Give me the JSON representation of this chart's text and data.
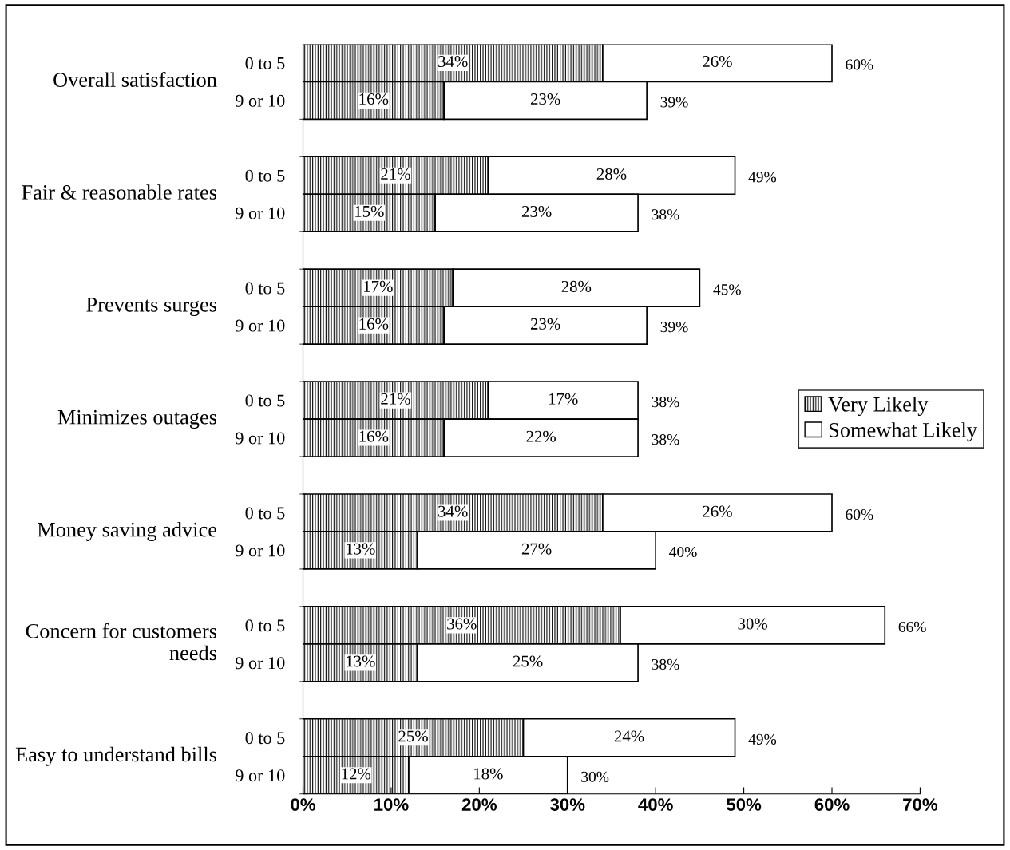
{
  "chart_data": {
    "type": "bar",
    "orientation": "horizontal",
    "stacked": true,
    "categories": [
      "0 to 5",
      "9 or 10",
      "0 to 5",
      "9 or 10",
      "0 to 5",
      "9 or 10",
      "0 to 5",
      "9 or 10",
      "0 to 5",
      "9 or 10",
      "0 to 5",
      "9 or 10",
      "0 to 5",
      "9 or 10"
    ],
    "annotations": [
      "Overall satisfaction",
      "Fair & reasonable rates",
      "Prevents surges",
      "Minimizes outages",
      "Money saving advice",
      "Concern for customers needs",
      "Easy to understand bills"
    ],
    "series": [
      {
        "name": "Very Likely",
        "color": "#000000",
        "values": [
          34,
          16,
          21,
          15,
          17,
          16,
          21,
          16,
          34,
          13,
          36,
          13,
          25,
          12
        ],
        "value_labels": [
          "34%",
          "16%",
          "21%",
          "15%",
          "17%",
          "16%",
          "21%",
          "16%",
          "34%",
          "13%",
          "36%",
          "13%",
          "25%",
          "12%"
        ]
      },
      {
        "name": "Somewhat Likely",
        "color": "#ffffff",
        "values": [
          26,
          23,
          28,
          23,
          28,
          23,
          17,
          22,
          26,
          27,
          30,
          25,
          24,
          18
        ],
        "value_labels": [
          "26%",
          "23%",
          "28%",
          "23%",
          "28%",
          "23%",
          "17%",
          "22%",
          "26%",
          "27%",
          "30%",
          "25%",
          "24%",
          "18%"
        ]
      }
    ],
    "totals": [
      "60%",
      "39%",
      "49%",
      "38%",
      "45%",
      "39%",
      "38%",
      "38%",
      "60%",
      "40%",
      "66%",
      "38%",
      "49%",
      "30%"
    ],
    "xlim": [
      0,
      70
    ],
    "xticks": [
      {
        "value": 0,
        "label": "0%"
      },
      {
        "value": 10,
        "label": "10%"
      },
      {
        "value": 20,
        "label": "20%"
      },
      {
        "value": 30,
        "label": "30%"
      },
      {
        "value": 40,
        "label": "40%"
      },
      {
        "value": 50,
        "label": "50%"
      },
      {
        "value": 60,
        "label": "60%"
      },
      {
        "value": 70,
        "label": "70%"
      }
    ],
    "legend": "right",
    "grid": false
  }
}
